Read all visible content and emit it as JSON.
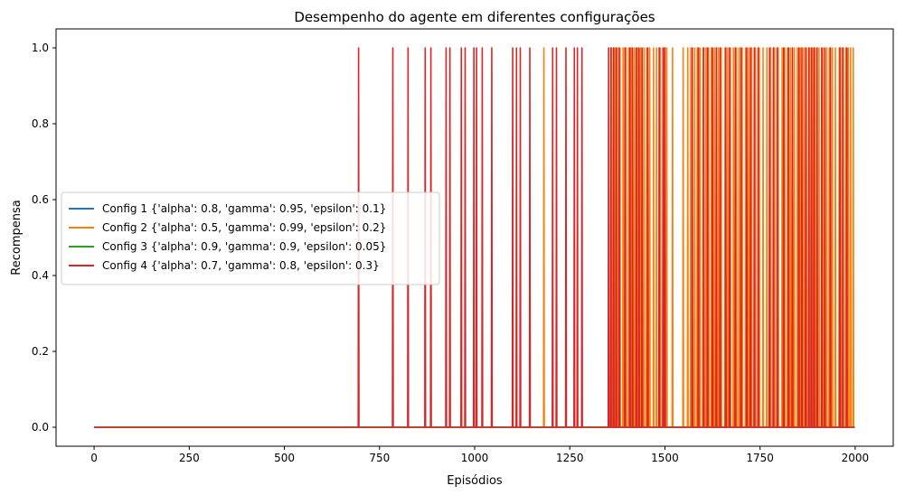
{
  "chart_data": {
    "type": "line",
    "title": "Desempenho do agente em diferentes configurações",
    "xlabel": "Episódios",
    "ylabel": "Recompensa",
    "xlim": [
      -100,
      2100
    ],
    "ylim": [
      -0.05,
      1.05
    ],
    "xticks": [
      0,
      250,
      500,
      750,
      1000,
      1250,
      1500,
      1750,
      2000
    ],
    "xtick_labels": [
      "0",
      "250",
      "500",
      "750",
      "1000",
      "1250",
      "1500",
      "1750",
      "2000"
    ],
    "yticks": [
      0.0,
      0.2,
      0.4,
      0.6,
      0.8,
      1.0
    ],
    "ytick_labels": [
      "0.0",
      "0.2",
      "0.4",
      "0.6",
      "0.8",
      "1.0"
    ],
    "grid": false,
    "legend_position": "center-left",
    "series": [
      {
        "name": "Config 1 {'alpha': 0.8, 'gamma': 0.95, 'epsilon': 0.1}",
        "color": "#1f77b4",
        "x_range": [
          0,
          1999
        ],
        "baseline": 0,
        "success_episodes": []
      },
      {
        "name": "Config 2 {'alpha': 0.5, 'gamma': 0.99, 'epsilon': 0.2}",
        "color": "#ff7f0e",
        "x_range": [
          0,
          1999
        ],
        "baseline": 0,
        "success_episodes": [
          1182,
          1360,
          1368,
          1375,
          1382,
          1390,
          1398,
          1405,
          1412,
          1420,
          1428,
          1436,
          1445,
          1452,
          1460,
          1470,
          1478,
          1488,
          1497,
          1505,
          1520,
          1548,
          1560,
          1568,
          1578,
          1585,
          1592,
          1600,
          1608,
          1615,
          1622,
          1630,
          1640,
          1648,
          1658,
          1665,
          1672,
          1680,
          1688,
          1695,
          1703,
          1712,
          1720,
          1728,
          1738,
          1748,
          1758,
          1768,
          1778,
          1788,
          1798,
          1808,
          1815,
          1822,
          1830,
          1840,
          1848,
          1856,
          1865,
          1872,
          1880,
          1888,
          1895,
          1905,
          1915,
          1925,
          1932,
          1940,
          1948,
          1958,
          1965,
          1975,
          1982,
          1988,
          1995
        ]
      },
      {
        "name": "Config 3 {'alpha': 0.9, 'gamma': 0.9, 'epsilon': 0.05}",
        "color": "#2ca02c",
        "x_range": [
          0,
          1999
        ],
        "baseline": 0,
        "success_episodes": []
      },
      {
        "name": "Config 4 {'alpha': 0.7, 'gamma': 0.8, 'epsilon': 0.3}",
        "color": "#d62728",
        "x_range": [
          0,
          1999
        ],
        "baseline": 0,
        "success_episodes": [
          695,
          785,
          825,
          870,
          885,
          925,
          935,
          965,
          975,
          998,
          1005,
          1020,
          1045,
          1100,
          1110,
          1120,
          1145,
          1205,
          1215,
          1240,
          1262,
          1270,
          1282,
          1352,
          1358,
          1365,
          1372,
          1380,
          1395,
          1408,
          1415,
          1425,
          1432,
          1440,
          1455,
          1485,
          1495,
          1500,
          1572,
          1588,
          1602,
          1612,
          1625,
          1635,
          1645,
          1660,
          1670,
          1685,
          1700,
          1715,
          1725,
          1735,
          1745,
          1775,
          1785,
          1795,
          1812,
          1825,
          1835,
          1852,
          1860,
          1870,
          1878,
          1885,
          1892,
          1900,
          1912,
          1920,
          1935,
          1960,
          1968,
          1978
        ]
      }
    ]
  }
}
